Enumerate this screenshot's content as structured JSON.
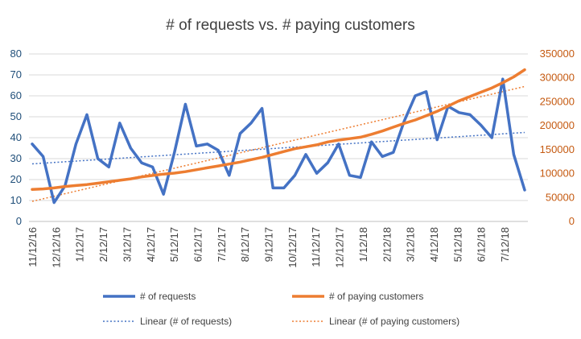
{
  "chart_data": {
    "type": "line",
    "title": "# of requests vs. # paying customers",
    "xlabel": "",
    "ylabel": "",
    "x_tick_labels": [
      "11/12/16",
      "12/12/16",
      "1/12/17",
      "2/12/17",
      "3/12/17",
      "4/12/17",
      "5/12/17",
      "6/12/17",
      "7/12/17",
      "8/12/17",
      "9/12/17",
      "10/12/17",
      "11/12/17",
      "12/12/17",
      "1/12/18",
      "2/12/18",
      "3/12/18",
      "4/12/18",
      "5/12/18",
      "6/12/18",
      "7/12/18"
    ],
    "y_left": {
      "ylim": [
        0,
        80
      ],
      "ticks": [
        "0",
        "10",
        "20",
        "30",
        "40",
        "50",
        "60",
        "70",
        "80"
      ]
    },
    "y_right": {
      "ylim": [
        0,
        350000
      ],
      "ticks": [
        "0",
        "50000",
        "100000",
        "150000",
        "200000",
        "250000",
        "300000",
        "350000"
      ]
    },
    "grid": true,
    "legend_position": "bottom",
    "series": [
      {
        "name": "# of requests",
        "axis": "left",
        "color": "#4472c4",
        "values": [
          37,
          31,
          9,
          17,
          37,
          51,
          30,
          26,
          47,
          35,
          28,
          26,
          13,
          33,
          56,
          36,
          37,
          34,
          22,
          42,
          47,
          54,
          16,
          16,
          22,
          32,
          23,
          28,
          37,
          22,
          21,
          38,
          31,
          33,
          48,
          60,
          62,
          39,
          55,
          52,
          51,
          46,
          40,
          68,
          32,
          15
        ]
      },
      {
        "name": "# of paying customers",
        "axis": "right",
        "color": "#ed7d31",
        "values": [
          67000,
          68000,
          70000,
          73000,
          75000,
          77000,
          80000,
          83000,
          86000,
          89000,
          93000,
          96000,
          99000,
          101000,
          104000,
          108000,
          112000,
          116000,
          120000,
          124000,
          129000,
          134000,
          140000,
          146000,
          152000,
          156000,
          160000,
          166000,
          170000,
          173000,
          176000,
          182000,
          189000,
          197000,
          205000,
          212000,
          221000,
          230000,
          241000,
          252000,
          261000,
          270000,
          279000,
          290000,
          302000,
          317000
        ]
      }
    ],
    "trendlines": [
      {
        "name": "Linear  (# of requests)",
        "of": "# of requests",
        "color": "#4472c4",
        "start": 27.5,
        "end": 42.5
      },
      {
        "name": "Linear  (# of paying customers)",
        "of": "# of paying customers",
        "color": "#ed7d31",
        "start": 42000,
        "end": 282000
      }
    ]
  }
}
